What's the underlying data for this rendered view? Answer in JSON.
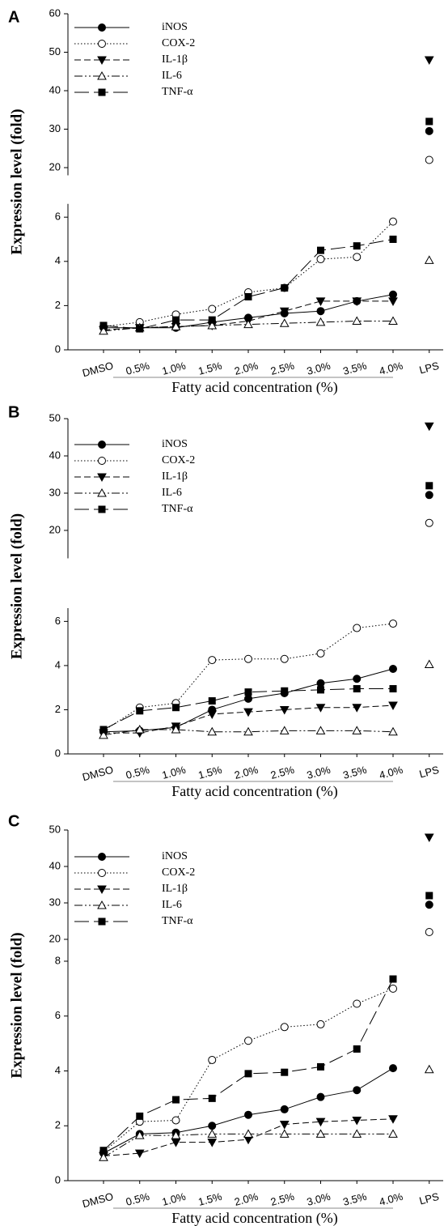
{
  "chart_data": [
    {
      "type": "line",
      "panel_label": "A",
      "ylabel": "Expression level (fold)",
      "xlabel": "Fatty acid concentration (%)",
      "categories": [
        "DMSO",
        "0.5%",
        "1.0%",
        "1.5%",
        "2.0%",
        "2.5%",
        "3.0%",
        "3.5%",
        "4.0%"
      ],
      "control_category": "LPS",
      "ylim": [
        0,
        6.6
      ],
      "yticks": [
        0,
        2,
        4,
        6
      ],
      "upper_ylim": [
        18,
        60
      ],
      "upper_yticks": [
        20,
        30,
        40,
        50,
        60
      ],
      "series": [
        {
          "name": "iNOS",
          "color": "#000000",
          "marker": "filled-circle",
          "dash": "solid",
          "values": [
            1.0,
            1.0,
            1.0,
            1.25,
            1.45,
            1.65,
            1.75,
            2.2,
            2.5
          ],
          "control_value": 29.5
        },
        {
          "name": "COX-2",
          "color": "#000000",
          "marker": "open-circle",
          "dash": "dotted",
          "values": [
            1.05,
            1.25,
            1.6,
            1.85,
            2.6,
            2.8,
            4.1,
            4.2,
            5.8
          ],
          "control_value": 22
        },
        {
          "name": "IL-1β",
          "color": "#000000",
          "marker": "filled-down-triangle",
          "dash": "dashed",
          "values": [
            0.9,
            1.0,
            1.05,
            1.1,
            1.3,
            1.75,
            2.2,
            2.2,
            2.2
          ],
          "control_value": 48
        },
        {
          "name": "IL-6",
          "color": "#000000",
          "marker": "open-up-triangle",
          "dash": "dash-dot-dot",
          "values": [
            0.85,
            1.0,
            1.05,
            1.1,
            1.15,
            1.2,
            1.25,
            1.3,
            1.3
          ],
          "control_value": 4.05
        },
        {
          "name": "TNF-α",
          "color": "#000000",
          "marker": "filled-square",
          "dash": "long-dash",
          "values": [
            1.1,
            0.95,
            1.35,
            1.35,
            2.4,
            2.8,
            4.5,
            4.7,
            5.0
          ],
          "control_value": 32
        }
      ]
    },
    {
      "type": "line",
      "panel_label": "B",
      "ylabel": "Expression level (fold)",
      "xlabel": "Fatty acid concentration (%)",
      "categories": [
        "DMSO",
        "0.5%",
        "1.0%",
        "1.5%",
        "2.0%",
        "2.5%",
        "3.0%",
        "3.5%",
        "4.0%"
      ],
      "control_category": "LPS",
      "ylim": [
        0,
        6.6
      ],
      "yticks": [
        0,
        2,
        4,
        6
      ],
      "upper_ylim": [
        12.5,
        50
      ],
      "upper_yticks": [
        20,
        30,
        40,
        50
      ],
      "series": [
        {
          "name": "iNOS",
          "color": "#000000",
          "marker": "filled-circle",
          "dash": "solid",
          "values": [
            1.0,
            1.05,
            1.2,
            2.0,
            2.5,
            2.75,
            3.2,
            3.4,
            3.85
          ],
          "control_value": 29.5
        },
        {
          "name": "COX-2",
          "color": "#000000",
          "marker": "open-circle",
          "dash": "dotted",
          "values": [
            1.05,
            2.1,
            2.3,
            4.25,
            4.3,
            4.3,
            4.55,
            5.7,
            5.9
          ],
          "control_value": 22
        },
        {
          "name": "IL-1β",
          "color": "#000000",
          "marker": "filled-down-triangle",
          "dash": "dashed",
          "values": [
            0.95,
            0.95,
            1.25,
            1.8,
            1.9,
            2.0,
            2.1,
            2.1,
            2.2
          ],
          "control_value": 48
        },
        {
          "name": "IL-6",
          "color": "#000000",
          "marker": "open-up-triangle",
          "dash": "dash-dot-dot",
          "values": [
            0.85,
            1.1,
            1.1,
            1.0,
            1.0,
            1.05,
            1.05,
            1.05,
            1.0
          ],
          "control_value": 4.05
        },
        {
          "name": "TNF-α",
          "color": "#000000",
          "marker": "filled-square",
          "dash": "long-dash",
          "values": [
            1.1,
            1.95,
            2.1,
            2.4,
            2.8,
            2.85,
            2.9,
            2.95,
            2.95
          ],
          "control_value": 32
        }
      ]
    },
    {
      "type": "line",
      "panel_label": "C",
      "ylabel": "Expression level (fold)",
      "xlabel": "Fatty acid concentration (%)",
      "categories": [
        "DMSO",
        "0.5%",
        "1.0%",
        "1.5%",
        "2.0%",
        "2.5%",
        "3.0%",
        "3.5%",
        "4.0%"
      ],
      "control_category": "LPS",
      "ylim": [
        0,
        8
      ],
      "yticks": [
        0,
        2,
        4,
        6,
        8
      ],
      "upper_ylim": [
        14,
        50
      ],
      "upper_yticks": [
        20,
        30,
        40,
        50
      ],
      "series": [
        {
          "name": "iNOS",
          "color": "#000000",
          "marker": "filled-circle",
          "dash": "solid",
          "values": [
            1.0,
            1.7,
            1.75,
            2.0,
            2.4,
            2.6,
            3.05,
            3.3,
            4.1
          ],
          "control_value": 29.5
        },
        {
          "name": "COX-2",
          "color": "#000000",
          "marker": "open-circle",
          "dash": "dotted",
          "values": [
            1.05,
            2.15,
            2.2,
            4.4,
            5.1,
            5.6,
            5.7,
            6.45,
            7.0
          ],
          "control_value": 22
        },
        {
          "name": "IL-1β",
          "color": "#000000",
          "marker": "filled-down-triangle",
          "dash": "dashed",
          "values": [
            0.9,
            1.0,
            1.4,
            1.4,
            1.5,
            2.05,
            2.15,
            2.2,
            2.25
          ],
          "control_value": 48
        },
        {
          "name": "IL-6",
          "color": "#000000",
          "marker": "open-up-triangle",
          "dash": "dash-dot-dot",
          "values": [
            0.85,
            1.65,
            1.65,
            1.7,
            1.7,
            1.7,
            1.7,
            1.7,
            1.7
          ],
          "control_value": 4.05
        },
        {
          "name": "TNF-α",
          "color": "#000000",
          "marker": "filled-square",
          "dash": "long-dash",
          "values": [
            1.1,
            2.35,
            2.95,
            3.0,
            3.9,
            3.95,
            4.15,
            4.8,
            7.35
          ],
          "control_value": 32
        }
      ]
    }
  ]
}
